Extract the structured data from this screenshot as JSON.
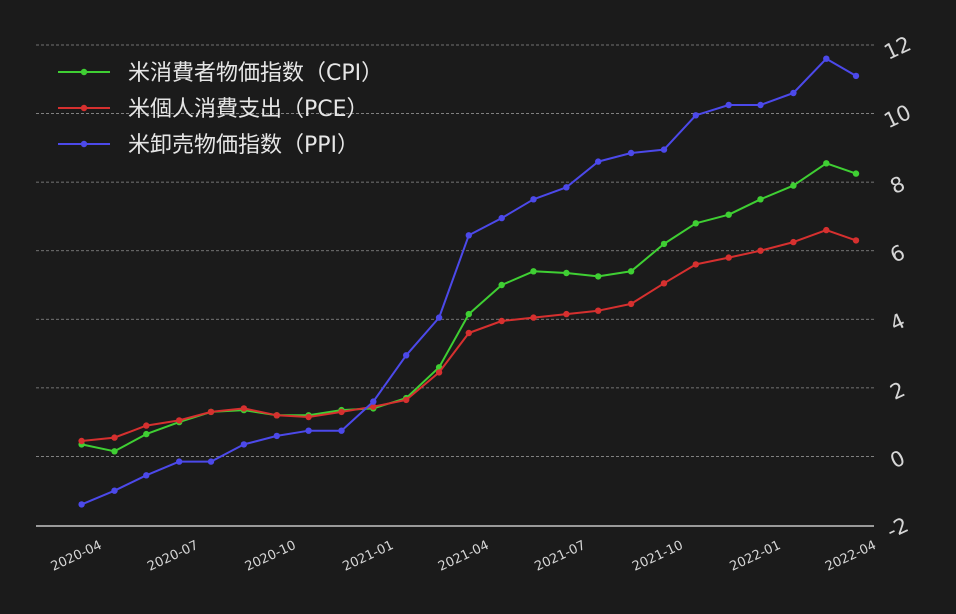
{
  "chart_data": {
    "type": "line",
    "title": "",
    "xlabel": "",
    "ylabel": "",
    "x": [
      "2020-03",
      "2020-04",
      "2020-05",
      "2020-06",
      "2020-07",
      "2020-08",
      "2020-09",
      "2020-10",
      "2020-11",
      "2020-12",
      "2021-01",
      "2021-02",
      "2021-03",
      "2021-04",
      "2021-05",
      "2021-06",
      "2021-07",
      "2021-08",
      "2021-09",
      "2021-10",
      "2021-11",
      "2021-12",
      "2022-01",
      "2022-02",
      "2022-03"
    ],
    "x_tick_labels": [
      "2020-04",
      "2020-07",
      "2020-10",
      "2021-01",
      "2021-04",
      "2021-07",
      "2021-10",
      "2022-01",
      "2022-04"
    ],
    "x_tick_dates": [
      "2020-04-01",
      "2020-07-01",
      "2020-10-01",
      "2021-01-01",
      "2021-04-01",
      "2021-07-01",
      "2021-10-01",
      "2022-01-01",
      "2022-04-01"
    ],
    "xlim": [
      "2020-02-01",
      "2022-04-01"
    ],
    "ylim": [
      -2,
      12
    ],
    "y_ticks": [
      -2,
      0,
      2,
      4,
      6,
      8,
      10,
      12
    ],
    "y_axis_side": "right",
    "grid": true,
    "legend_position": "top-left",
    "series": [
      {
        "name": "米消費者物価指数（CPI）",
        "color": "#3fcf33",
        "values": [
          0.35,
          0.15,
          0.65,
          1.0,
          1.3,
          1.35,
          1.2,
          1.2,
          1.35,
          1.4,
          1.7,
          2.6,
          4.15,
          5.0,
          5.4,
          5.35,
          5.25,
          5.4,
          6.2,
          6.8,
          7.05,
          7.5,
          7.9,
          8.55,
          8.25
        ]
      },
      {
        "name": "米個人消費支出（PCE）",
        "color": "#d6302f",
        "values": [
          0.45,
          0.55,
          0.9,
          1.05,
          1.3,
          1.4,
          1.2,
          1.15,
          1.3,
          1.45,
          1.65,
          2.45,
          3.6,
          3.95,
          4.05,
          4.15,
          4.25,
          4.45,
          5.05,
          5.6,
          5.8,
          6.0,
          6.25,
          6.6,
          6.3
        ]
      },
      {
        "name": "米卸売物価指数（PPI）",
        "color": "#4c49ea",
        "values": [
          -1.4,
          -1.0,
          -0.55,
          -0.15,
          -0.15,
          0.35,
          0.6,
          0.75,
          0.75,
          1.6,
          2.95,
          4.05,
          6.45,
          6.95,
          7.5,
          7.85,
          8.6,
          8.85,
          8.95,
          9.95,
          10.25,
          10.25,
          10.6,
          11.6,
          11.1
        ]
      }
    ]
  }
}
